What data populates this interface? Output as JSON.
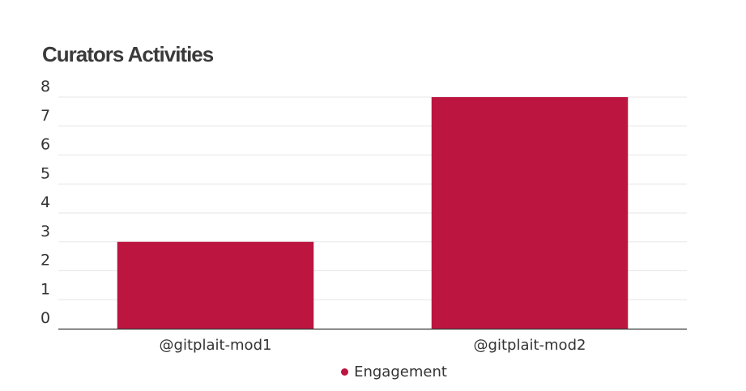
{
  "chart_data": {
    "type": "bar",
    "title": "Curators Activities",
    "categories": [
      "@gitplait-mod1",
      "@gitplait-mod2"
    ],
    "series": [
      {
        "name": "Engagement",
        "values": [
          3,
          8
        ]
      }
    ],
    "ylim": [
      0,
      8
    ],
    "yticks": [
      "0",
      "1",
      "2",
      "3",
      "4",
      "5",
      "6",
      "7",
      "8"
    ],
    "grid": true,
    "legend_position": "bottom-center",
    "colors": {
      "bar": "#bb1540",
      "grid": "#e6e6e6",
      "axis": "#333333",
      "text": "#333333"
    }
  }
}
